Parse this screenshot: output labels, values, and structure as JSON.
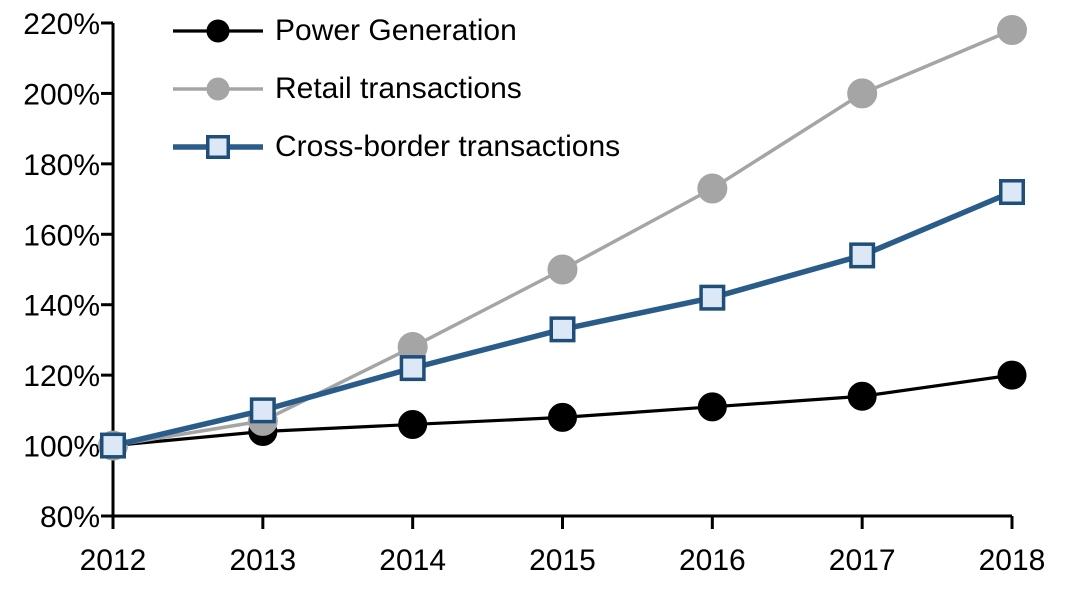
{
  "chart_data": {
    "type": "line",
    "title": "",
    "xlabel": "",
    "ylabel": "",
    "x": [
      2012,
      2013,
      2014,
      2015,
      2016,
      2017,
      2018
    ],
    "x_tick_labels": [
      "2012",
      "2013",
      "2014",
      "2015",
      "2016",
      "2017",
      "2018"
    ],
    "ylim": [
      80,
      220
    ],
    "y_tick_step": 20,
    "y_tick_labels": [
      "80%",
      "100%",
      "120%",
      "140%",
      "160%",
      "180%",
      "200%",
      "220%"
    ],
    "grid": false,
    "legend_position": "top-left-inside",
    "background": "#FFFFFF",
    "axis_color": "#000000",
    "series": [
      {
        "name": "Power Generation",
        "values": [
          100,
          104,
          106,
          108,
          111,
          114,
          120
        ],
        "color": "#000000",
        "marker": "circle",
        "marker_fill": "#000000",
        "marker_stroke": "#000000",
        "line_width": 3.2,
        "marker_size": 14
      },
      {
        "name": "Retail transactions",
        "values": [
          100,
          107,
          128,
          150,
          173,
          200,
          218
        ],
        "color": "#A5A5A5",
        "marker": "circle",
        "marker_fill": "#A5A5A5",
        "marker_stroke": "#A5A5A5",
        "line_width": 3.5,
        "marker_size": 14.5
      },
      {
        "name": "Cross-border transactions",
        "values": [
          100,
          110,
          122,
          133,
          142,
          154,
          172
        ],
        "color": "#2A5C8A",
        "marker": "square",
        "marker_fill": "#DCE8F5",
        "marker_stroke": "#1F4E79",
        "line_width": 5.5,
        "marker_size": 13
      }
    ]
  }
}
